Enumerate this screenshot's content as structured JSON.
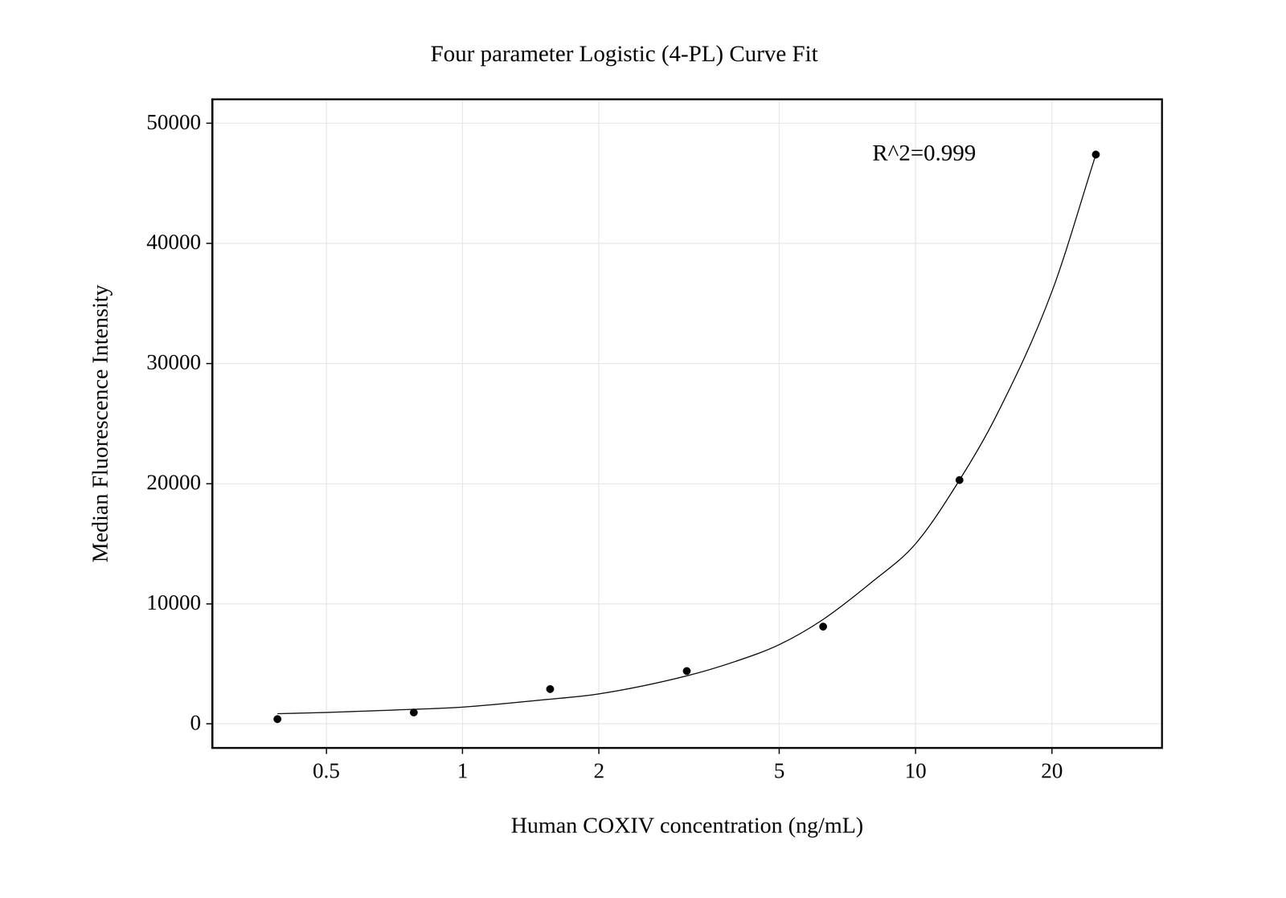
{
  "chart_data": {
    "type": "scatter",
    "title": "Four parameter Logistic (4-PL) Curve Fit",
    "x_label": "Human COXIV concentration (ng/mL)",
    "y_label": "Median Fluorescence Intensity",
    "annotations": [
      {
        "text": "R^2=0.999"
      }
    ],
    "log": "x",
    "grid": true,
    "xlim": [
      0.28,
      35
    ],
    "xticks": [
      0.5,
      1,
      2,
      5,
      10,
      20
    ],
    "ylim": [
      -2000,
      52000
    ],
    "yticks": [
      0,
      10000,
      20000,
      30000,
      40000,
      50000
    ],
    "series": [
      {
        "type": "scatter",
        "color": "#000000",
        "marker": "circle",
        "x": [
          0.39,
          0.78,
          1.56,
          3.125,
          6.25,
          12.5,
          25
        ],
        "values": [
          400,
          950,
          2900,
          4400,
          8100,
          20300,
          47400
        ]
      },
      {
        "type": "line",
        "color": "#000000",
        "line_style": "solid",
        "x": [
          0.39,
          0.5,
          0.7,
          1,
          1.5,
          2,
          3.125,
          4,
          5,
          6.25,
          8,
          10,
          12.5,
          15,
          20,
          25
        ],
        "values": [
          850,
          950,
          1150,
          1400,
          2000,
          2500,
          4000,
          5200,
          6600,
          8700,
          11800,
          15000,
          20300,
          25500,
          36000,
          47400
        ]
      }
    ]
  }
}
